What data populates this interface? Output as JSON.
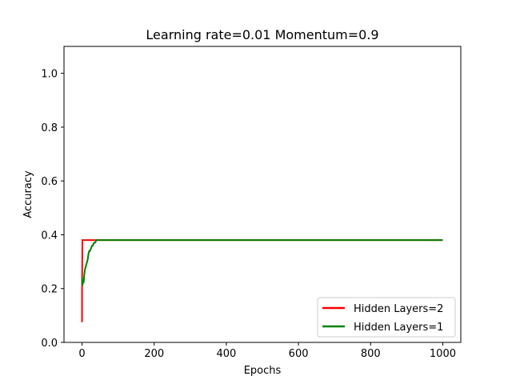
{
  "chart_data": {
    "type": "line",
    "title": "Learning rate=0.01 Momentum=0.9",
    "xlabel": "Epochs",
    "ylabel": "Accuracy",
    "xlim": [
      -50,
      1050
    ],
    "ylim": [
      0.0,
      1.1
    ],
    "xticks": [
      0,
      200,
      400,
      600,
      800,
      1000
    ],
    "yticks": [
      0.0,
      0.2,
      0.4,
      0.6,
      0.8,
      1.0
    ],
    "grid": false,
    "legend_position": "lower right",
    "series": [
      {
        "name": "Hidden Layers=2",
        "color": "#ff0000",
        "x": [
          0,
          0,
          1,
          2,
          5,
          10,
          50,
          100,
          200,
          300,
          400,
          500,
          600,
          700,
          800,
          900,
          1000
        ],
        "y": [
          0.075,
          0.2,
          0.38,
          0.38,
          0.38,
          0.38,
          0.38,
          0.38,
          0.38,
          0.38,
          0.38,
          0.38,
          0.38,
          0.38,
          0.38,
          0.38,
          0.38
        ]
      },
      {
        "name": "Hidden Layers=1",
        "color": "#008000",
        "x": [
          0,
          1,
          2,
          3,
          4,
          5,
          6,
          7,
          8,
          10,
          12,
          14,
          16,
          18,
          20,
          22,
          25,
          28,
          30,
          33,
          36,
          40,
          45,
          50,
          100,
          200,
          300,
          400,
          500,
          600,
          700,
          800,
          900,
          1000
        ],
        "y": [
          0.24,
          0.21,
          0.22,
          0.23,
          0.22,
          0.23,
          0.25,
          0.26,
          0.27,
          0.28,
          0.29,
          0.3,
          0.31,
          0.33,
          0.34,
          0.34,
          0.35,
          0.36,
          0.36,
          0.37,
          0.37,
          0.38,
          0.38,
          0.38,
          0.38,
          0.38,
          0.38,
          0.38,
          0.38,
          0.38,
          0.38,
          0.38,
          0.38,
          0.38
        ]
      }
    ]
  }
}
